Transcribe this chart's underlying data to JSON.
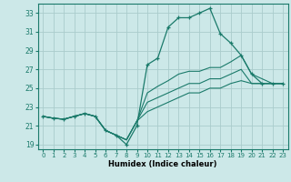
{
  "title": "",
  "xlabel": "Humidex (Indice chaleur)",
  "ylabel": "",
  "xlim": [
    -0.5,
    23.5
  ],
  "ylim": [
    18.5,
    34.0
  ],
  "xticks": [
    0,
    1,
    2,
    3,
    4,
    5,
    6,
    7,
    8,
    9,
    10,
    11,
    12,
    13,
    14,
    15,
    16,
    17,
    18,
    19,
    20,
    21,
    22,
    23
  ],
  "yticks": [
    19,
    21,
    23,
    25,
    27,
    29,
    31,
    33
  ],
  "bg_color": "#cce8e8",
  "grid_color": "#aacccc",
  "line_color": "#1a7a6a",
  "lines": [
    {
      "x": [
        0,
        1,
        2,
        3,
        4,
        5,
        6,
        7,
        8,
        9,
        10,
        11,
        12,
        13,
        14,
        15,
        16,
        17,
        18,
        19,
        20,
        21,
        22,
        23
      ],
      "y": [
        22.0,
        21.8,
        21.7,
        22.0,
        22.3,
        22.0,
        20.5,
        20.0,
        19.0,
        21.0,
        27.5,
        28.2,
        31.5,
        32.5,
        32.5,
        33.0,
        33.5,
        30.8,
        29.8,
        28.5,
        26.5,
        25.5,
        25.5,
        25.5
      ],
      "marker": true
    },
    {
      "x": [
        0,
        1,
        2,
        3,
        4,
        5,
        6,
        7,
        8,
        9,
        10,
        11,
        12,
        13,
        14,
        15,
        16,
        17,
        18,
        19,
        20,
        21,
        22,
        23
      ],
      "y": [
        22.0,
        21.8,
        21.7,
        22.0,
        22.3,
        22.0,
        20.5,
        20.0,
        19.5,
        21.5,
        24.5,
        25.2,
        25.8,
        26.5,
        26.8,
        26.8,
        27.2,
        27.2,
        27.8,
        28.5,
        26.5,
        26.0,
        25.5,
        25.5
      ],
      "marker": false
    },
    {
      "x": [
        0,
        1,
        2,
        3,
        4,
        5,
        6,
        7,
        8,
        9,
        10,
        11,
        12,
        13,
        14,
        15,
        16,
        17,
        18,
        19,
        20,
        21,
        22,
        23
      ],
      "y": [
        22.0,
        21.8,
        21.7,
        22.0,
        22.3,
        22.0,
        20.5,
        20.0,
        19.5,
        21.5,
        23.5,
        24.0,
        24.5,
        25.0,
        25.5,
        25.5,
        26.0,
        26.0,
        26.5,
        27.0,
        25.5,
        25.5,
        25.5,
        25.5
      ],
      "marker": false
    },
    {
      "x": [
        0,
        1,
        2,
        3,
        4,
        5,
        6,
        7,
        8,
        9,
        10,
        11,
        12,
        13,
        14,
        15,
        16,
        17,
        18,
        19,
        20,
        21,
        22,
        23
      ],
      "y": [
        22.0,
        21.8,
        21.7,
        22.0,
        22.3,
        22.0,
        20.5,
        20.0,
        19.5,
        21.5,
        22.5,
        23.0,
        23.5,
        24.0,
        24.5,
        24.5,
        25.0,
        25.0,
        25.5,
        25.8,
        25.5,
        25.5,
        25.5,
        25.5
      ],
      "marker": false
    }
  ]
}
